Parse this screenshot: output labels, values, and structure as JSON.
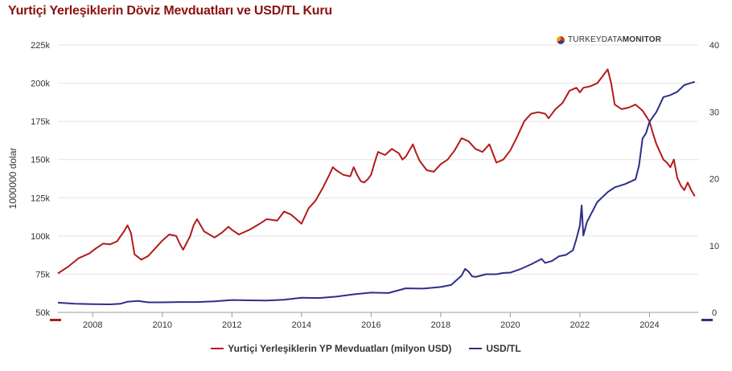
{
  "title": "Yurtiçi Yerleşiklerin Döviz Mevduatları ve USD/TL Kuru",
  "logo": {
    "part1": "TURKEYDATA",
    "part2": "MONITOR"
  },
  "chart_data": {
    "type": "line",
    "title": "Yurtiçi Yerleşiklerin Döviz Mevduatları ve USD/TL Kuru",
    "ylabel": "1000000 dolar",
    "ylim": [
      50000,
      225000
    ],
    "y2lim": [
      0,
      40
    ],
    "xlim": [
      2007,
      2024.9
    ],
    "x_ticks": [
      "2008",
      "2010",
      "2012",
      "2014",
      "2016",
      "2018",
      "2020",
      "2022",
      "2024"
    ],
    "y_ticks": [
      "50k",
      "75k",
      "100k",
      "125k",
      "150k",
      "175k",
      "200k",
      "225k"
    ],
    "y2_ticks": [
      "0",
      "10",
      "20",
      "30",
      "40"
    ],
    "grid": true,
    "legend_position": "bottom",
    "series": [
      {
        "name": "Yurtiçi Yerleşiklerin YP Mevduatları (milyon USD)",
        "axis": "left",
        "color": "#b31b1b",
        "points": [
          [
            2007.0,
            75500
          ],
          [
            2007.3,
            80000
          ],
          [
            2007.6,
            85500
          ],
          [
            2007.9,
            88500
          ],
          [
            2008.1,
            92000
          ],
          [
            2008.3,
            95000
          ],
          [
            2008.5,
            94500
          ],
          [
            2008.7,
            96500
          ],
          [
            2008.9,
            103000
          ],
          [
            2009.0,
            107000
          ],
          [
            2009.1,
            102000
          ],
          [
            2009.2,
            88000
          ],
          [
            2009.4,
            84500
          ],
          [
            2009.6,
            87000
          ],
          [
            2009.8,
            92000
          ],
          [
            2010.0,
            97000
          ],
          [
            2010.2,
            101000
          ],
          [
            2010.4,
            100000
          ],
          [
            2010.5,
            95000
          ],
          [
            2010.6,
            91000
          ],
          [
            2010.8,
            100000
          ],
          [
            2010.9,
            107000
          ],
          [
            2011.0,
            111000
          ],
          [
            2011.2,
            103000
          ],
          [
            2011.5,
            99000
          ],
          [
            2011.7,
            102000
          ],
          [
            2011.9,
            106000
          ],
          [
            2012.0,
            104000
          ],
          [
            2012.2,
            101000
          ],
          [
            2012.5,
            104000
          ],
          [
            2012.8,
            108000
          ],
          [
            2013.0,
            111000
          ],
          [
            2013.3,
            110000
          ],
          [
            2013.5,
            116000
          ],
          [
            2013.7,
            114000
          ],
          [
            2013.9,
            110000
          ],
          [
            2014.0,
            108000
          ],
          [
            2014.1,
            113000
          ],
          [
            2014.2,
            118000
          ],
          [
            2014.4,
            123000
          ],
          [
            2014.6,
            131000
          ],
          [
            2014.8,
            140000
          ],
          [
            2014.9,
            145000
          ],
          [
            2015.0,
            143000
          ],
          [
            2015.2,
            140000
          ],
          [
            2015.4,
            139000
          ],
          [
            2015.5,
            145000
          ],
          [
            2015.6,
            140000
          ],
          [
            2015.7,
            136000
          ],
          [
            2015.8,
            135000
          ],
          [
            2015.9,
            137000
          ],
          [
            2016.0,
            140000
          ],
          [
            2016.1,
            148000
          ],
          [
            2016.2,
            155000
          ],
          [
            2016.4,
            153000
          ],
          [
            2016.6,
            157000
          ],
          [
            2016.8,
            154000
          ],
          [
            2016.9,
            150000
          ],
          [
            2017.0,
            152000
          ],
          [
            2017.2,
            160000
          ],
          [
            2017.3,
            154000
          ],
          [
            2017.4,
            149000
          ],
          [
            2017.6,
            143000
          ],
          [
            2017.8,
            142000
          ],
          [
            2018.0,
            147000
          ],
          [
            2018.2,
            150000
          ],
          [
            2018.4,
            156000
          ],
          [
            2018.6,
            164000
          ],
          [
            2018.8,
            162000
          ],
          [
            2019.0,
            157000
          ],
          [
            2019.2,
            155000
          ],
          [
            2019.4,
            160000
          ],
          [
            2019.5,
            154000
          ],
          [
            2019.6,
            148000
          ],
          [
            2019.8,
            150000
          ],
          [
            2020.0,
            156000
          ],
          [
            2020.2,
            165000
          ],
          [
            2020.4,
            175000
          ],
          [
            2020.6,
            180000
          ],
          [
            2020.8,
            181000
          ],
          [
            2021.0,
            180000
          ],
          [
            2021.1,
            177000
          ],
          [
            2021.3,
            183000
          ],
          [
            2021.5,
            187000
          ],
          [
            2021.7,
            195000
          ],
          [
            2021.9,
            197000
          ],
          [
            2022.0,
            194000
          ],
          [
            2022.1,
            197000
          ],
          [
            2022.3,
            198000
          ],
          [
            2022.5,
            200000
          ],
          [
            2022.6,
            203000
          ],
          [
            2022.8,
            209000
          ],
          [
            2022.9,
            200000
          ],
          [
            2023.0,
            186000
          ],
          [
            2023.2,
            183000
          ],
          [
            2023.4,
            184000
          ],
          [
            2023.6,
            186000
          ],
          [
            2023.8,
            182000
          ],
          [
            2024.0,
            175000
          ],
          [
            2024.1,
            167000
          ],
          [
            2024.2,
            160000
          ],
          [
            2024.3,
            155000
          ],
          [
            2024.4,
            150000
          ],
          [
            2024.5,
            148000
          ],
          [
            2024.6,
            145000
          ],
          [
            2024.7,
            150000
          ],
          [
            2024.8,
            138000
          ],
          [
            2024.9,
            133000
          ],
          [
            2025.0,
            130000
          ],
          [
            2025.1,
            135000
          ],
          [
            2025.2,
            130000
          ],
          [
            2025.3,
            126000
          ]
        ]
      },
      {
        "name": "USD/TL",
        "axis": "right",
        "color": "#2e2e8c",
        "points": [
          [
            2007.0,
            1.45
          ],
          [
            2007.5,
            1.3
          ],
          [
            2008.0,
            1.22
          ],
          [
            2008.5,
            1.2
          ],
          [
            2008.8,
            1.3
          ],
          [
            2009.0,
            1.6
          ],
          [
            2009.3,
            1.7
          ],
          [
            2009.6,
            1.5
          ],
          [
            2010.0,
            1.5
          ],
          [
            2010.5,
            1.55
          ],
          [
            2011.0,
            1.55
          ],
          [
            2011.5,
            1.65
          ],
          [
            2012.0,
            1.85
          ],
          [
            2012.5,
            1.8
          ],
          [
            2013.0,
            1.78
          ],
          [
            2013.5,
            1.9
          ],
          [
            2014.0,
            2.2
          ],
          [
            2014.5,
            2.15
          ],
          [
            2015.0,
            2.35
          ],
          [
            2015.5,
            2.7
          ],
          [
            2016.0,
            2.95
          ],
          [
            2016.5,
            2.9
          ],
          [
            2017.0,
            3.6
          ],
          [
            2017.5,
            3.55
          ],
          [
            2018.0,
            3.8
          ],
          [
            2018.3,
            4.1
          ],
          [
            2018.6,
            5.5
          ],
          [
            2018.7,
            6.5
          ],
          [
            2018.8,
            6.1
          ],
          [
            2018.9,
            5.4
          ],
          [
            2019.0,
            5.3
          ],
          [
            2019.3,
            5.7
          ],
          [
            2019.6,
            5.7
          ],
          [
            2019.8,
            5.9
          ],
          [
            2020.0,
            5.95
          ],
          [
            2020.3,
            6.5
          ],
          [
            2020.6,
            7.2
          ],
          [
            2020.9,
            8.0
          ],
          [
            2021.0,
            7.4
          ],
          [
            2021.2,
            7.7
          ],
          [
            2021.4,
            8.4
          ],
          [
            2021.6,
            8.6
          ],
          [
            2021.8,
            9.3
          ],
          [
            2021.9,
            11.0
          ],
          [
            2022.0,
            13.0
          ],
          [
            2022.05,
            16.0
          ],
          [
            2022.1,
            11.5
          ],
          [
            2022.2,
            13.5
          ],
          [
            2022.5,
            16.5
          ],
          [
            2022.8,
            18.0
          ],
          [
            2023.0,
            18.7
          ],
          [
            2023.3,
            19.2
          ],
          [
            2023.6,
            19.9
          ],
          [
            2023.7,
            22.0
          ],
          [
            2023.8,
            26.0
          ],
          [
            2023.9,
            26.8
          ],
          [
            2024.0,
            28.5
          ],
          [
            2024.2,
            30.0
          ],
          [
            2024.4,
            32.2
          ],
          [
            2024.6,
            32.5
          ],
          [
            2024.8,
            33.0
          ],
          [
            2025.0,
            34.0
          ],
          [
            2025.3,
            34.5
          ]
        ]
      }
    ]
  }
}
